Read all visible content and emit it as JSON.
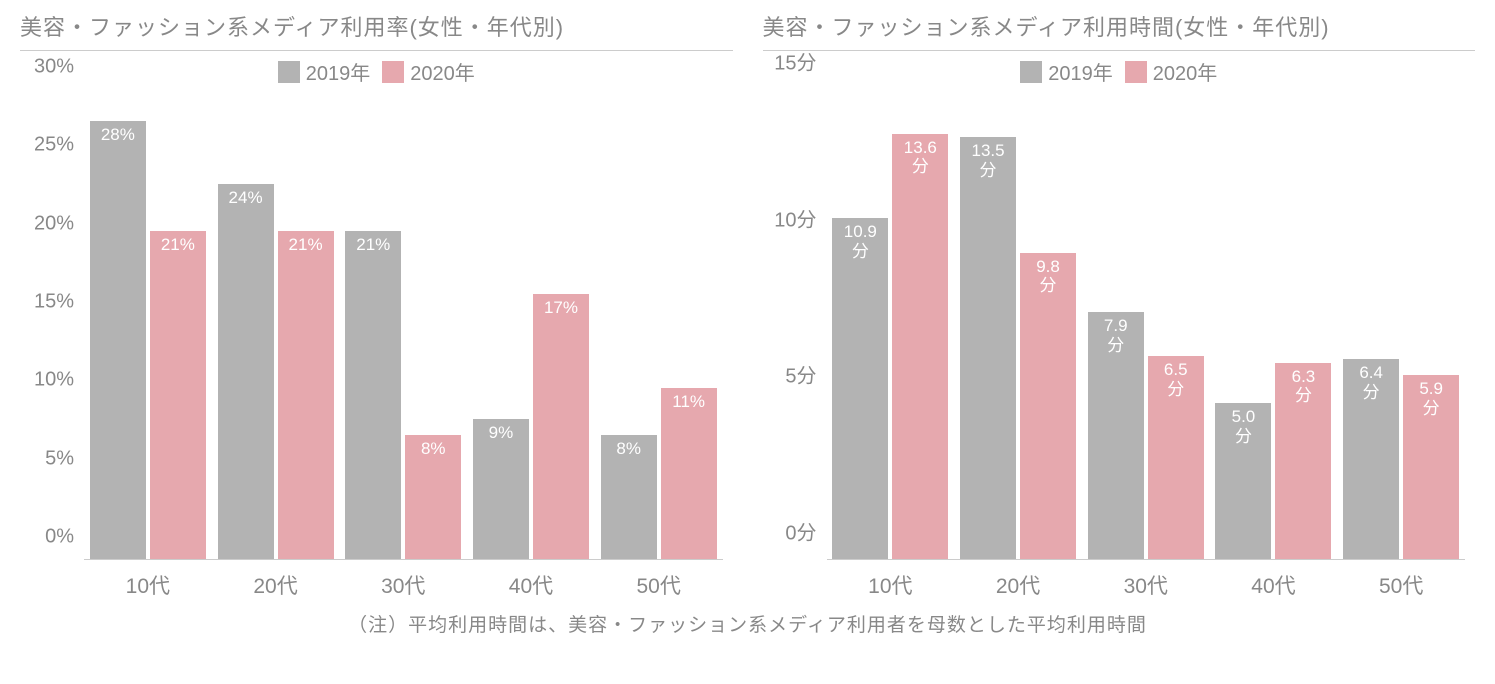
{
  "colors": {
    "series_2019": "#b3b3b3",
    "series_2020": "#e6a8ae",
    "text": "#888888",
    "divider": "#cccccc",
    "background": "#ffffff",
    "bar_label": "#ffffff"
  },
  "legend": {
    "items": [
      {
        "label": "2019年",
        "color_key": "series_2019"
      },
      {
        "label": "2020年",
        "color_key": "series_2020"
      }
    ]
  },
  "left_chart": {
    "type": "bar",
    "title": "美容・ファッション系メディア利用率(女性・年代別)",
    "y_max": 30,
    "y_tick_step": 5,
    "y_unit": "%",
    "categories": [
      "10代",
      "20代",
      "30代",
      "40代",
      "50代"
    ],
    "series": [
      {
        "name": "2019年",
        "color_key": "series_2019",
        "values": [
          28,
          24,
          21,
          9,
          8
        ],
        "labels": [
          "28%",
          "24%",
          "21%",
          "9%",
          "8%"
        ]
      },
      {
        "name": "2020年",
        "color_key": "series_2020",
        "values": [
          21,
          21,
          8,
          17,
          11
        ],
        "labels": [
          "21%",
          "21%",
          "8%",
          "17%",
          "11%"
        ]
      }
    ]
  },
  "right_chart": {
    "type": "bar",
    "title": "美容・ファッション系メディア利用時間(女性・年代別)",
    "y_max": 15,
    "y_tick_step": 5,
    "y_unit": "分",
    "categories": [
      "10代",
      "20代",
      "30代",
      "40代",
      "50代"
    ],
    "series": [
      {
        "name": "2019年",
        "color_key": "series_2019",
        "values": [
          10.9,
          13.5,
          7.9,
          5.0,
          6.4
        ],
        "labels": [
          "10.9\n分",
          "13.5\n分",
          "7.9\n分",
          "5.0\n分",
          "6.4\n分"
        ]
      },
      {
        "name": "2020年",
        "color_key": "series_2020",
        "values": [
          13.6,
          9.8,
          6.5,
          6.3,
          5.9
        ],
        "labels": [
          "13.6\n分",
          "9.8\n分",
          "6.5\n分",
          "6.3\n分",
          "5.9\n分"
        ]
      }
    ]
  },
  "footnote": "（注）平均利用時間は、美容・ファッション系メディア利用者を母数とした平均利用時間"
}
